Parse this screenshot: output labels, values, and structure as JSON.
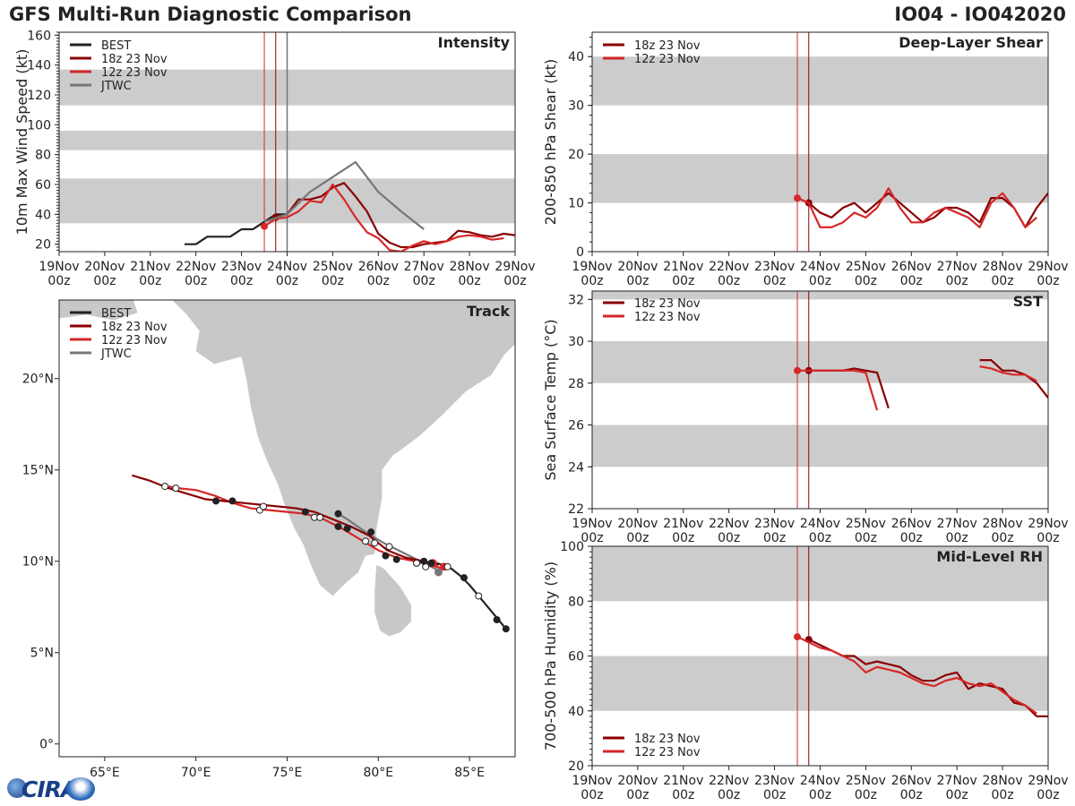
{
  "page": {
    "title": "GFS Multi-Run Diagnostic Comparison",
    "storm_id": "IO04 - IO042020"
  },
  "time_axis": {
    "ticks": [
      "19Nov\n00z",
      "20Nov\n00z",
      "21Nov\n00z",
      "22Nov\n00z",
      "23Nov\n00z",
      "24Nov\n00z",
      "25Nov\n00z",
      "26Nov\n00z",
      "27Nov\n00z",
      "28Nov\n00z",
      "29Nov\n00z"
    ],
    "start_day": 19,
    "end_day": 29,
    "init_times": [
      23.5,
      23.75
    ]
  },
  "colors": {
    "best": "#222222",
    "run18z": "#8b0000",
    "run12z": "#d62728",
    "jtwc": "#777777",
    "band": "#cccccc",
    "land": "#c8c8c8"
  },
  "chart_data": [
    {
      "id": "intensity",
      "type": "line",
      "title": "Intensity",
      "ylabel": "10m Max Wind Speed (kt)",
      "ylim": [
        15,
        162
      ],
      "yticks": [
        20,
        40,
        60,
        80,
        100,
        120,
        140,
        160
      ],
      "bands": [
        [
          34,
          64
        ],
        [
          83,
          96
        ],
        [
          113,
          137
        ]
      ],
      "legend": [
        "BEST",
        "18z 23 Nov",
        "12z 23 Nov",
        "JTWC"
      ],
      "series": [
        {
          "name": "BEST",
          "color": "best",
          "x": [
            21.75,
            22,
            22.25,
            22.5,
            22.75,
            23,
            23.25,
            23.5,
            23.75,
            24
          ],
          "y": [
            20,
            20,
            25,
            25,
            25,
            30,
            30,
            35,
            40,
            40
          ]
        },
        {
          "name": "18z 23 Nov",
          "color": "run18z",
          "marker": [
            23.75,
            38
          ],
          "x": [
            23.75,
            24,
            24.25,
            24.5,
            24.75,
            25,
            25.25,
            25.5,
            25.75,
            26,
            26.25,
            26.5,
            26.75,
            27,
            27.25,
            27.5,
            27.75,
            28,
            28.25,
            28.5,
            28.75,
            29
          ],
          "y": [
            38,
            40,
            50,
            50,
            52,
            58,
            61,
            52,
            42,
            27,
            21,
            18,
            18,
            20,
            21,
            22,
            29,
            28,
            26,
            25,
            27,
            26
          ]
        },
        {
          "name": "12z 23 Nov",
          "color": "run12z",
          "marker": [
            23.5,
            32
          ],
          "x": [
            23.5,
            23.75,
            24,
            24.25,
            24.5,
            24.75,
            25,
            25.25,
            25.5,
            25.75,
            26,
            26.25,
            26.5,
            26.75,
            27,
            27.25,
            27.5,
            27.75,
            28,
            28.25,
            28.5,
            28.75
          ],
          "y": [
            32,
            37,
            38,
            42,
            49,
            48,
            60,
            50,
            38,
            28,
            24,
            16,
            15,
            19,
            22,
            20,
            22,
            25,
            26,
            25,
            23,
            24
          ]
        },
        {
          "name": "JTWC",
          "color": "jtwc",
          "x": [
            23.5,
            24,
            24.5,
            25,
            25.5,
            26,
            26.5,
            27
          ],
          "y": [
            35,
            40,
            55,
            65,
            75,
            55,
            42,
            30
          ]
        }
      ]
    },
    {
      "id": "shear",
      "type": "line",
      "title": "Deep-Layer Shear",
      "ylabel": "200-850 hPa Shear (kt)",
      "ylim": [
        0,
        45
      ],
      "yticks": [
        0,
        10,
        20,
        30,
        40
      ],
      "bands": [
        [
          10,
          20
        ],
        [
          30,
          40
        ]
      ],
      "legend": [
        "18z 23 Nov",
        "12z 23 Nov"
      ],
      "series": [
        {
          "name": "18z 23 Nov",
          "color": "run18z",
          "marker": [
            23.75,
            10
          ],
          "x": [
            23.75,
            24,
            24.25,
            24.5,
            24.75,
            25,
            25.25,
            25.5,
            25.75,
            26,
            26.25,
            26.5,
            26.75,
            27,
            27.25,
            27.5,
            27.75,
            28,
            28.25,
            28.5,
            28.75,
            29
          ],
          "y": [
            10,
            8,
            7,
            9,
            10,
            8,
            10,
            12,
            10,
            8,
            6,
            7,
            9,
            9,
            8,
            6,
            11,
            11,
            9,
            5,
            9,
            12
          ]
        },
        {
          "name": "12z 23 Nov",
          "color": "run12z",
          "marker": [
            23.5,
            11
          ],
          "x": [
            23.5,
            23.75,
            24,
            24.25,
            24.5,
            24.75,
            25,
            25.25,
            25.5,
            25.75,
            26,
            26.25,
            26.5,
            26.75,
            27,
            27.25,
            27.5,
            27.75,
            28,
            28.25,
            28.5,
            28.75
          ],
          "y": [
            11,
            10,
            5,
            5,
            6,
            8,
            7,
            9,
            13,
            9,
            6,
            6,
            8,
            9,
            8,
            7,
            5,
            10,
            12,
            9,
            5,
            7
          ]
        }
      ]
    },
    {
      "id": "sst",
      "type": "line",
      "title": "SST",
      "ylabel": "Sea Surface Temp (°C)",
      "ylim": [
        22,
        32.4
      ],
      "yticks": [
        22,
        24,
        26,
        28,
        30,
        32
      ],
      "bands": [
        [
          24,
          26
        ],
        [
          28,
          30
        ],
        [
          32,
          33
        ]
      ],
      "legend": [
        "18z 23 Nov",
        "12z 23 Nov"
      ],
      "series": [
        {
          "name": "18z 23 Nov",
          "color": "run18z",
          "marker": [
            23.75,
            28.6
          ],
          "x": [
            23.75,
            24,
            24.25,
            24.5,
            24.75,
            25,
            25.25,
            25.5
          ],
          "y": [
            28.6,
            28.6,
            28.6,
            28.6,
            28.7,
            28.6,
            28.5,
            26.8
          ]
        },
        {
          "name": "18z 23 Nov b",
          "color": "run18z",
          "x": [
            27.5,
            27.75,
            28,
            28.25,
            28.5,
            28.75,
            29
          ],
          "y": [
            29.1,
            29.1,
            28.6,
            28.6,
            28.4,
            28,
            27.3
          ]
        },
        {
          "name": "12z 23 Nov",
          "color": "run12z",
          "marker": [
            23.5,
            28.6
          ],
          "x": [
            23.5,
            23.75,
            24,
            24.25,
            24.5,
            24.75,
            25,
            25.25
          ],
          "y": [
            28.6,
            28.6,
            28.6,
            28.6,
            28.6,
            28.6,
            28.5,
            26.7
          ]
        },
        {
          "name": "12z 23 Nov b",
          "color": "run12z",
          "x": [
            27.5,
            27.75,
            28,
            28.25,
            28.5,
            28.75
          ],
          "y": [
            28.8,
            28.7,
            28.5,
            28.4,
            28.4,
            28.1
          ]
        }
      ]
    },
    {
      "id": "rh",
      "type": "line",
      "title": "Mid-Level RH",
      "ylabel": "700-500 hPa Humidity (%)",
      "ylim": [
        20,
        100
      ],
      "yticks": [
        20,
        40,
        60,
        80,
        100
      ],
      "bands": [
        [
          40,
          60
        ],
        [
          80,
          100
        ]
      ],
      "legend": [
        "18z 23 Nov",
        "12z 23 Nov"
      ],
      "series": [
        {
          "name": "18z 23 Nov",
          "color": "run18z",
          "marker": [
            23.75,
            66
          ],
          "x": [
            23.75,
            24,
            24.25,
            24.5,
            24.75,
            25,
            25.25,
            25.5,
            25.75,
            26,
            26.25,
            26.5,
            26.75,
            27,
            27.25,
            27.5,
            27.75,
            28,
            28.25,
            28.5,
            28.75,
            29
          ],
          "y": [
            66,
            64,
            62,
            60,
            60,
            57,
            58,
            57,
            56,
            53,
            51,
            51,
            53,
            54,
            48,
            50,
            49,
            48,
            43,
            42,
            38,
            38
          ]
        },
        {
          "name": "12z 23 Nov",
          "color": "run12z",
          "marker": [
            23.5,
            67
          ],
          "x": [
            23.5,
            23.75,
            24,
            24.25,
            24.5,
            24.75,
            25,
            25.25,
            25.5,
            25.75,
            26,
            26.25,
            26.5,
            26.75,
            27,
            27.25,
            27.5,
            27.75,
            28,
            28.25,
            28.5,
            28.75
          ],
          "y": [
            67,
            65,
            63,
            62,
            60,
            58,
            54,
            56,
            55,
            54,
            52,
            50,
            49,
            51,
            52,
            50,
            49,
            50,
            47,
            44,
            42,
            39
          ]
        }
      ]
    },
    {
      "id": "track",
      "type": "map",
      "title": "Track",
      "xticks": [
        "65°E",
        "70°E",
        "75°E",
        "80°E",
        "85°E"
      ],
      "yticks": [
        "0°",
        "5°N",
        "10°N",
        "15°N",
        "20°N"
      ],
      "legend": [
        "BEST",
        "18z 23 Nov",
        "12z 23 Nov",
        "JTWC"
      ],
      "tracks": [
        {
          "name": "BEST",
          "color": "best",
          "lon": [
            87.0,
            86.5,
            86.0,
            85.5,
            85.0,
            84.5,
            84.0,
            83.5,
            83.2,
            82.9
          ],
          "lat": [
            6.3,
            6.9,
            7.5,
            8.1,
            8.7,
            9.2,
            9.6,
            9.8,
            9.9,
            9.9
          ],
          "dots": [
            [
              87.0,
              6.3,
              1
            ],
            [
              86.5,
              6.8,
              1
            ],
            [
              85.5,
              8.1,
              0
            ],
            [
              84.7,
              9.1,
              1
            ],
            [
              83.8,
              9.7,
              0
            ],
            [
              82.9,
              9.9,
              1
            ]
          ]
        },
        {
          "name": "18z 23 Nov",
          "color": "run18z",
          "lon": [
            83.3,
            82.5,
            81.5,
            80.5,
            79.5,
            78.5,
            77.5,
            76.5,
            75.5,
            74.5,
            73.5,
            72.5,
            71.5,
            70.5,
            69.5,
            68.5,
            67.5,
            66.5
          ],
          "lat": [
            9.8,
            10.0,
            10.2,
            10.6,
            11.4,
            11.9,
            12.3,
            12.7,
            12.9,
            13.0,
            13.1,
            13.2,
            13.3,
            13.4,
            13.7,
            14.0,
            14.4,
            14.7
          ],
          "dots": [
            [
              82.5,
              10.0,
              1
            ],
            [
              81.0,
              10.1,
              1
            ],
            [
              80.4,
              10.3,
              1
            ],
            [
              79.3,
              11.1,
              0
            ],
            [
              78.3,
              11.8,
              1
            ],
            [
              76.8,
              12.4,
              0
            ],
            [
              76.0,
              12.7,
              1
            ],
            [
              73.7,
              13.0,
              0
            ],
            [
              72.0,
              13.3,
              1
            ],
            [
              71.1,
              13.3,
              1
            ],
            [
              68.9,
              14.0,
              0
            ],
            [
              68.3,
              14.1,
              0
            ]
          ]
        },
        {
          "name": "12z 23 Nov",
          "color": "run12z",
          "lon": [
            83.6,
            82.8,
            82.0,
            81.0,
            80.0,
            79.0,
            78.0,
            77.0,
            76.0,
            75.0,
            74.0,
            73.0,
            72.0,
            71.0,
            70.0,
            69.0,
            68.5
          ],
          "lat": [
            9.6,
            9.8,
            10.0,
            10.2,
            10.6,
            11.2,
            11.8,
            12.3,
            12.6,
            12.7,
            12.8,
            12.9,
            13.2,
            13.6,
            13.9,
            14.0,
            14.1
          ],
          "dots": [
            [
              83.6,
              9.7,
              2
            ],
            [
              83.0,
              9.9,
              2
            ],
            [
              82.6,
              9.7,
              0
            ],
            [
              82.1,
              9.9,
              0
            ],
            [
              79.8,
              11.0,
              0
            ],
            [
              77.8,
              11.9,
              1
            ],
            [
              76.5,
              12.4,
              0
            ],
            [
              73.5,
              12.8,
              0
            ]
          ]
        },
        {
          "name": "JTWC",
          "color": "jtwc",
          "lon": [
            83.3,
            82.3,
            81.3,
            80.3,
            79.3,
            78.3,
            77.8
          ],
          "lat": [
            9.5,
            10.0,
            10.5,
            11.0,
            11.6,
            12.3,
            12.6
          ],
          "dots": [
            [
              83.3,
              9.4,
              3
            ],
            [
              82.1,
              9.9,
              0
            ],
            [
              80.6,
              10.8,
              0
            ],
            [
              79.6,
              11.6,
              1
            ],
            [
              77.8,
              12.6,
              1
            ]
          ]
        }
      ]
    }
  ]
}
